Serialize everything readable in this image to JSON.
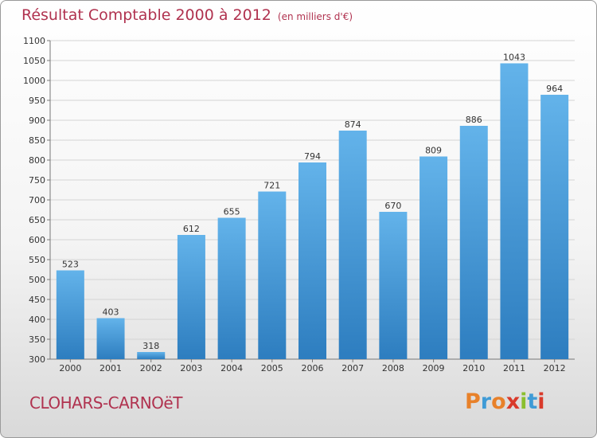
{
  "header": {
    "title": "Résultat Comptable 2000 à 2012",
    "subtitle": "(en milliers d'€)"
  },
  "footer": {
    "city": "CLOHARS-CARNOëT",
    "brand": "Proxiti",
    "brand_colors": [
      "#e8812a",
      "#3f9bd6",
      "#e8812a",
      "#d93a2b",
      "#8bbf2f",
      "#3f9bd6",
      "#d93a2b"
    ]
  },
  "colors": {
    "bar_top": "#63b3ea",
    "bar_bottom": "#2d7dbf",
    "title": "#b0324f"
  },
  "chart_data": {
    "type": "bar",
    "title": "Résultat Comptable 2000 à 2012",
    "subtitle": "(en milliers d'€)",
    "categories": [
      "2000",
      "2001",
      "2002",
      "2003",
      "2004",
      "2005",
      "2006",
      "2007",
      "2008",
      "2009",
      "2010",
      "2011",
      "2012"
    ],
    "values": [
      523,
      403,
      318,
      612,
      655,
      721,
      794,
      874,
      670,
      809,
      886,
      1043,
      964
    ],
    "ylim": [
      300,
      1100
    ],
    "yticks": [
      300,
      350,
      400,
      450,
      500,
      550,
      600,
      650,
      700,
      750,
      800,
      850,
      900,
      950,
      1000,
      1050,
      1100
    ],
    "grid": true,
    "data_labels": true
  }
}
